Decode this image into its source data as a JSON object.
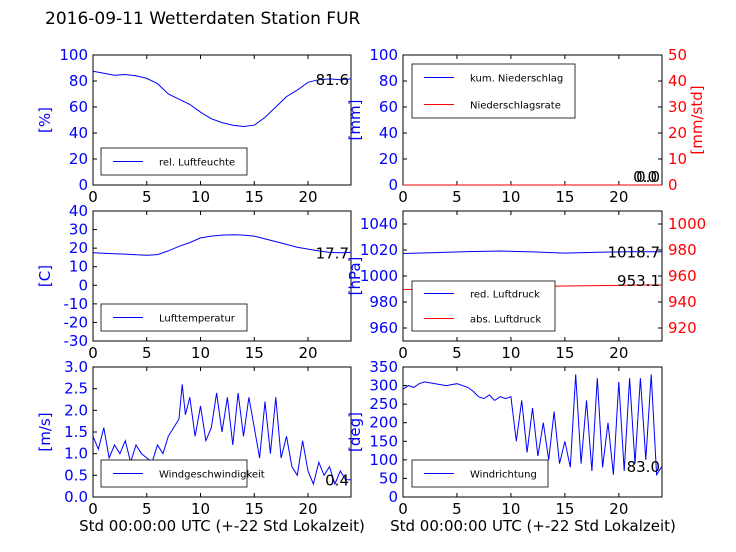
{
  "figure": {
    "title": "2016-09-11 Wetterdaten Station FUR\u001b",
    "xlabel": "Std 00:00:00 UTC (+-22 Std Lokalzeit)"
  },
  "colors": {
    "blue": "#0000ff",
    "red": "#ff0000",
    "black": "#000000"
  },
  "chart_data": [
    {
      "type": "line",
      "panel": "humidity",
      "ylabel": "[%]",
      "ylim": [
        0,
        100
      ],
      "yticks": [
        0,
        20,
        40,
        60,
        80,
        100
      ],
      "xlim": [
        0,
        24
      ],
      "xticks": [
        0,
        5,
        10,
        15,
        20
      ],
      "legend": "bottom-left",
      "series": [
        {
          "name": "rel. Luftfeuchte",
          "color": "#0000ff",
          "axis": "left",
          "x": [
            0,
            1,
            2,
            3,
            4,
            5,
            6,
            7,
            8,
            9,
            10,
            11,
            12,
            13,
            14,
            15,
            16,
            17,
            18,
            19,
            20,
            21,
            22,
            23,
            24
          ],
          "y": [
            87.5,
            86,
            84.5,
            85,
            84,
            82,
            78,
            70,
            66,
            62,
            56,
            51,
            48,
            46,
            45,
            46,
            52,
            60,
            68,
            73,
            79,
            81,
            81.6,
            81,
            81.6
          ]
        }
      ],
      "last_value": "81.6"
    },
    {
      "type": "line",
      "panel": "precipitation",
      "ylabel": "[mm]",
      "ylim": [
        0,
        100
      ],
      "yticks": [
        0,
        20,
        40,
        60,
        80,
        100
      ],
      "ylabel_right": "[mm/std]",
      "ylim_right": [
        0,
        50
      ],
      "yticks_right": [
        0,
        10,
        20,
        30,
        40,
        50
      ],
      "xlim": [
        0,
        24
      ],
      "xticks": [
        0,
        5,
        10,
        15,
        20
      ],
      "legend": "top-left",
      "series": [
        {
          "name": "kum. Niederschlag",
          "color": "#0000ff",
          "axis": "left",
          "x": [
            0,
            24
          ],
          "y": [
            0,
            0
          ]
        },
        {
          "name": "Niederschlagsrate",
          "color": "#ff0000",
          "axis": "right",
          "x": [
            0,
            24
          ],
          "y": [
            0,
            0
          ]
        }
      ],
      "last_value": "0.0",
      "last_value_2": "0.0"
    },
    {
      "type": "line",
      "panel": "temperature",
      "ylabel": "[C]",
      "ylim": [
        -30,
        40
      ],
      "yticks": [
        -30,
        -20,
        -10,
        0,
        10,
        20,
        30,
        40
      ],
      "xlim": [
        0,
        24
      ],
      "xticks": [
        0,
        5,
        10,
        15,
        20
      ],
      "legend": "bottom-left",
      "series": [
        {
          "name": "Lufttemperatur",
          "color": "#0000ff",
          "axis": "left",
          "x": [
            0,
            1,
            2,
            3,
            4,
            5,
            6,
            7,
            8,
            9,
            10,
            11,
            12,
            13,
            14,
            15,
            16,
            17,
            18,
            19,
            20,
            21,
            22,
            23,
            24
          ],
          "y": [
            17.5,
            17.2,
            17,
            16.8,
            16.4,
            16.2,
            16.5,
            18.5,
            21,
            23,
            25.5,
            26.5,
            27,
            27.2,
            27,
            26.5,
            25,
            23.5,
            22,
            20.5,
            19.5,
            18.5,
            17.7,
            17.5,
            17.7
          ]
        }
      ],
      "last_value": "17.7"
    },
    {
      "type": "line",
      "panel": "pressure",
      "ylabel": "[hPa]",
      "ylim": [
        950,
        1050
      ],
      "yticks": [
        960,
        980,
        1000,
        1020,
        1040
      ],
      "ylim_right": [
        910,
        1010
      ],
      "yticks_right": [
        920,
        940,
        960,
        980,
        1000
      ],
      "xlim": [
        0,
        24
      ],
      "xticks": [
        0,
        5,
        10,
        15,
        20
      ],
      "legend": "bottom-left",
      "series": [
        {
          "name": "red. Luftdruck",
          "color": "#0000ff",
          "axis": "left",
          "x": [
            0,
            3,
            6,
            9,
            12,
            15,
            18,
            21,
            24
          ],
          "y": [
            1017.3,
            1018,
            1018.8,
            1019.2,
            1018.5,
            1017.6,
            1018.2,
            1018.6,
            1018.7
          ]
        },
        {
          "name": "abs. Luftdruck",
          "color": "#ff0000",
          "axis": "right",
          "x": [
            0,
            3,
            6,
            9,
            12,
            15,
            18,
            21,
            24
          ],
          "y": [
            949.5,
            950,
            950.8,
            951.5,
            952,
            952.3,
            952.6,
            952.9,
            953.1
          ]
        }
      ],
      "last_value": "1018.7",
      "last_value_2": "953.1"
    },
    {
      "type": "line",
      "panel": "wind_speed",
      "ylabel": "[m/s]",
      "ylim": [
        0,
        3
      ],
      "yticks": [
        0.0,
        0.5,
        1.0,
        1.5,
        2.0,
        2.5,
        3.0
      ],
      "xlim": [
        0,
        24
      ],
      "xticks": [
        0,
        5,
        10,
        15,
        20
      ],
      "legend": "bottom-left",
      "series": [
        {
          "name": "Windgeschwindigkeit",
          "color": "#0000ff",
          "axis": "left",
          "x": [
            0,
            0.5,
            1,
            1.5,
            2,
            2.5,
            3,
            3.5,
            4,
            4.5,
            5,
            5.5,
            6,
            6.5,
            7,
            7.5,
            8,
            8.3,
            8.6,
            9,
            9.5,
            10,
            10.5,
            11,
            11.5,
            12,
            12.5,
            13,
            13.5,
            14,
            14.5,
            15,
            15.5,
            16,
            16.5,
            17,
            17.5,
            18,
            18.5,
            19,
            19.5,
            20,
            20.5,
            21,
            21.5,
            22,
            22.5,
            23,
            23.5,
            24
          ],
          "y": [
            1.4,
            1.1,
            1.6,
            0.9,
            1.2,
            1.0,
            1.3,
            0.8,
            1.2,
            1.0,
            0.9,
            0.8,
            1.2,
            1.0,
            1.4,
            1.6,
            1.8,
            2.6,
            1.9,
            2.3,
            1.4,
            2.1,
            1.3,
            1.6,
            2.4,
            1.5,
            2.3,
            1.2,
            2.4,
            1.4,
            2.3,
            1.6,
            0.9,
            2.2,
            1.0,
            2.3,
            0.9,
            1.4,
            0.7,
            0.5,
            1.3,
            0.6,
            0.3,
            0.8,
            0.5,
            0.7,
            0.3,
            0.6,
            0.4,
            0.4
          ]
        }
      ],
      "last_value": "0.4"
    },
    {
      "type": "line",
      "panel": "wind_direction",
      "ylabel": "[deg]",
      "ylim": [
        0,
        350
      ],
      "yticks": [
        0,
        50,
        100,
        150,
        200,
        250,
        300,
        350
      ],
      "xlim": [
        0,
        24
      ],
      "xticks": [
        0,
        5,
        10,
        15,
        20
      ],
      "legend": "bottom-left",
      "series": [
        {
          "name": "Windrichtung",
          "color": "#0000ff",
          "axis": "left",
          "x": [
            0,
            0.5,
            1,
            1.5,
            2,
            3,
            4,
            5,
            6,
            6.5,
            7,
            7.5,
            8,
            8.5,
            9,
            9.5,
            10,
            10.5,
            11,
            11.5,
            12,
            12.5,
            13,
            13.5,
            14,
            14.5,
            15,
            15.5,
            16,
            16.5,
            17,
            17.5,
            18,
            18.5,
            19,
            19.5,
            20,
            20.5,
            21,
            21.5,
            22,
            22.5,
            23,
            23.5,
            24
          ],
          "y": [
            290,
            300,
            295,
            305,
            310,
            305,
            300,
            305,
            295,
            285,
            270,
            265,
            275,
            260,
            270,
            265,
            270,
            150,
            260,
            120,
            240,
            110,
            200,
            100,
            230,
            90,
            150,
            80,
            330,
            90,
            260,
            70,
            320,
            80,
            200,
            60,
            310,
            70,
            320,
            90,
            320,
            100,
            330,
            60,
            83
          ]
        }
      ],
      "last_value": "83.0"
    }
  ]
}
